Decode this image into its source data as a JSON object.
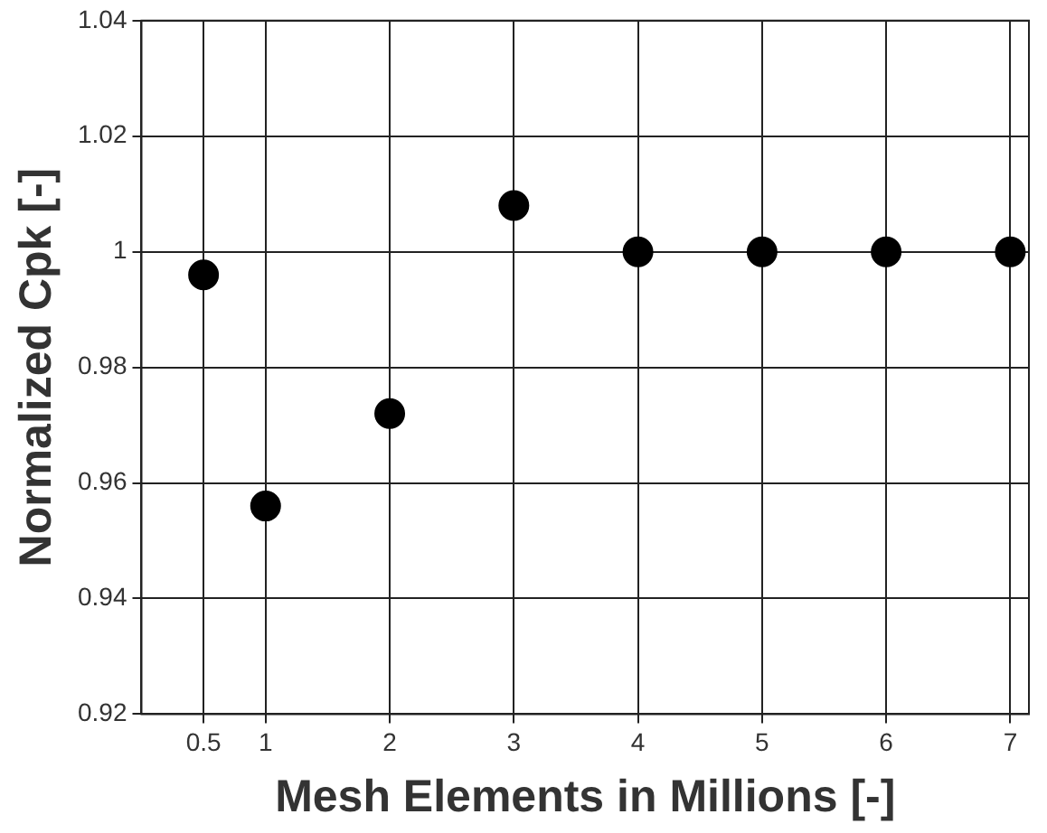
{
  "chart_data": {
    "type": "scatter",
    "xlabel": "Mesh Elements in Millions [-]",
    "ylabel": "Normalized Cpk [-]",
    "x": [
      0.5,
      1,
      2,
      3,
      4,
      5,
      6,
      7
    ],
    "series": [
      {
        "color": "#000000",
        "values": [
          0.996,
          0.956,
          0.972,
          1.008,
          1.0,
          1.0,
          1.0,
          1.0
        ]
      }
    ],
    "xlim": [
      0,
      7.15
    ],
    "xticks": [
      0.5,
      1,
      2,
      3,
      4,
      5,
      6,
      7
    ],
    "ylim": [
      0.92,
      1.04
    ],
    "yticks": [
      0.92,
      0.94,
      0.96,
      0.98,
      1,
      1.02,
      1.04
    ],
    "grid": true,
    "marker": "circle",
    "legend": false
  }
}
